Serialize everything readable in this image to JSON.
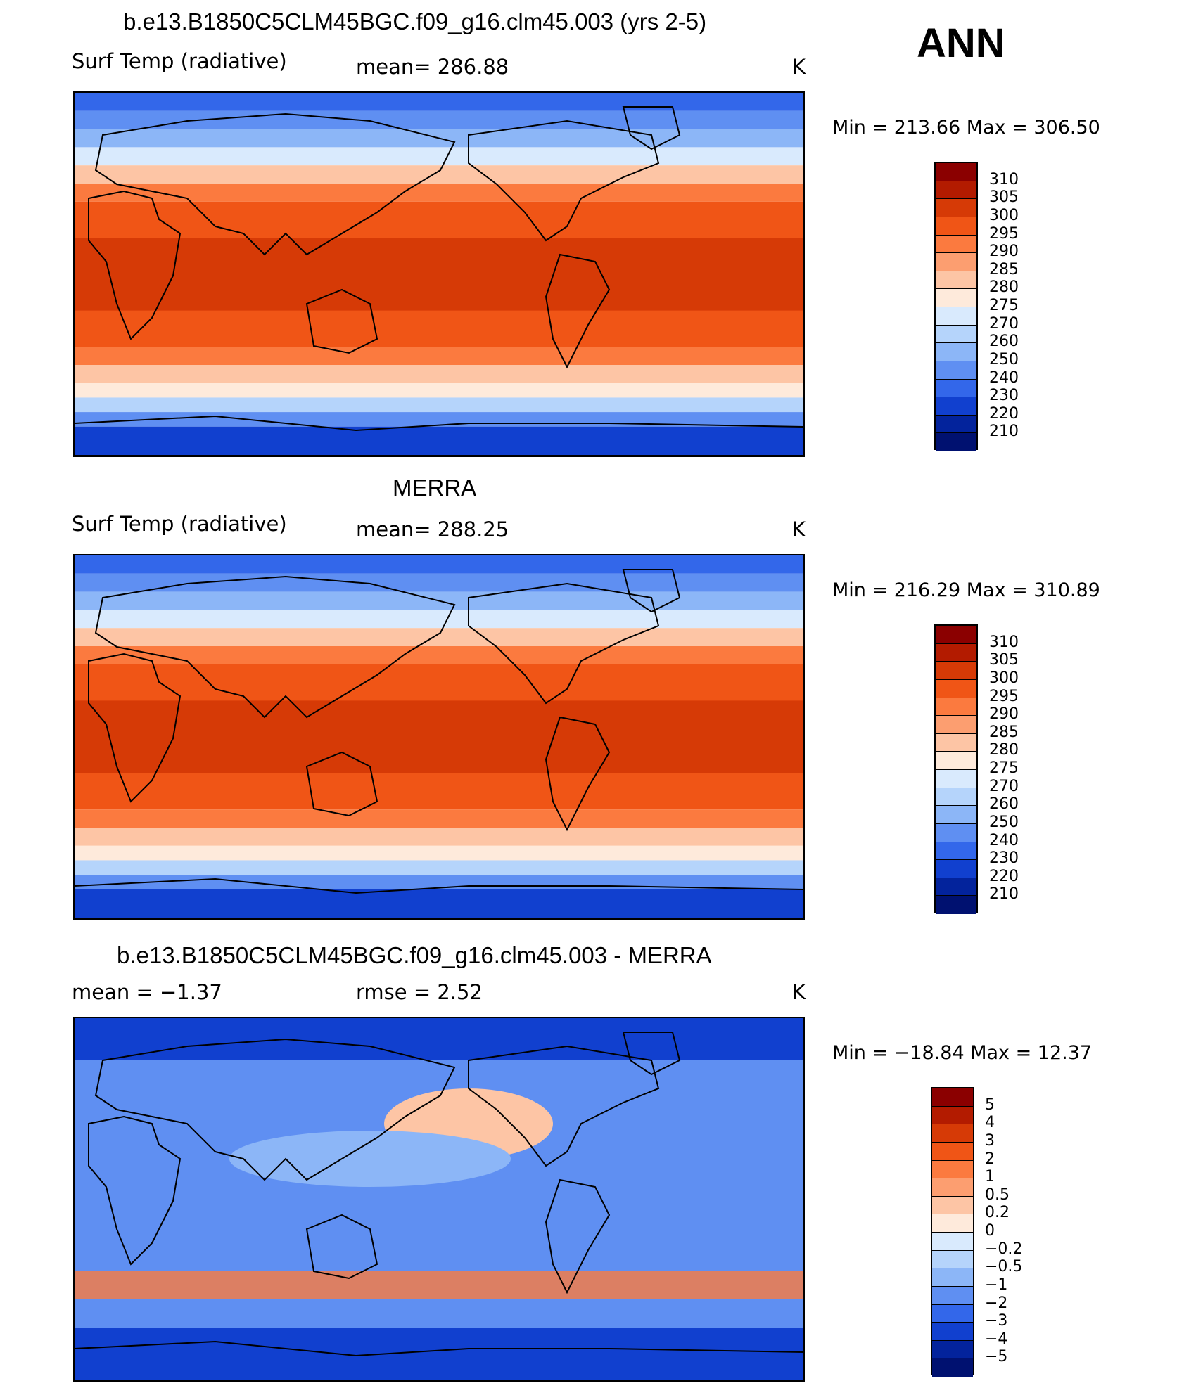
{
  "season": "ANN",
  "panels": [
    {
      "title": "b.e13.B1850C5CLM45BGC.f09_g16.clm45.003 (yrs 2-5)",
      "left_label": "Surf Temp (radiative)",
      "center_label": "mean=  286.88",
      "units": "K",
      "min": "213.66",
      "max": "306.50",
      "minmax_text": "Min  =  213.66  Max  =  306.50",
      "kind": "abs"
    },
    {
      "title": "MERRA",
      "left_label": "Surf Temp (radiative)",
      "center_label": "mean=  288.25",
      "units": "K",
      "min": "216.29",
      "max": "310.89",
      "minmax_text": "Min  =  216.29  Max  =  310.89",
      "kind": "abs"
    },
    {
      "title": "b.e13.B1850C5CLM45BGC.f09_g16.clm45.003 - MERRA",
      "left_label": "mean =    −1.37",
      "center_label": "rmse =     2.52",
      "units": "K",
      "min": "−18.84",
      "max": "12.37",
      "minmax_text": "Min  =  −18.84  Max  =   12.37",
      "kind": "diff"
    }
  ],
  "colorbar_abs": {
    "labels": [
      "310",
      "305",
      "300",
      "295",
      "290",
      "285",
      "280",
      "275",
      "270",
      "260",
      "250",
      "240",
      "230",
      "220",
      "210"
    ],
    "colors": [
      "#8b0000",
      "#b31b00",
      "#d63a06",
      "#f05516",
      "#fb7a3f",
      "#fc9e70",
      "#fdc5a5",
      "#feeadb",
      "#d9eafd",
      "#b5d4fb",
      "#8cb6f7",
      "#5f8ff2",
      "#3367ea",
      "#1140cf",
      "#03239c",
      "#001170"
    ]
  },
  "colorbar_diff": {
    "labels": [
      "5",
      "4",
      "3",
      "2",
      "1",
      "0.5",
      "0.2",
      "0",
      "−0.2",
      "−0.5",
      "−1",
      "−2",
      "−3",
      "−4",
      "−5"
    ],
    "colors": [
      "#8b0000",
      "#b31b00",
      "#d63a06",
      "#f05516",
      "#fb7a3f",
      "#fc9e70",
      "#fdc5a5",
      "#feeadb",
      "#d9eafd",
      "#b5d4fb",
      "#8cb6f7",
      "#5f8ff2",
      "#3367ea",
      "#1140cf",
      "#03239c",
      "#001170"
    ]
  }
}
